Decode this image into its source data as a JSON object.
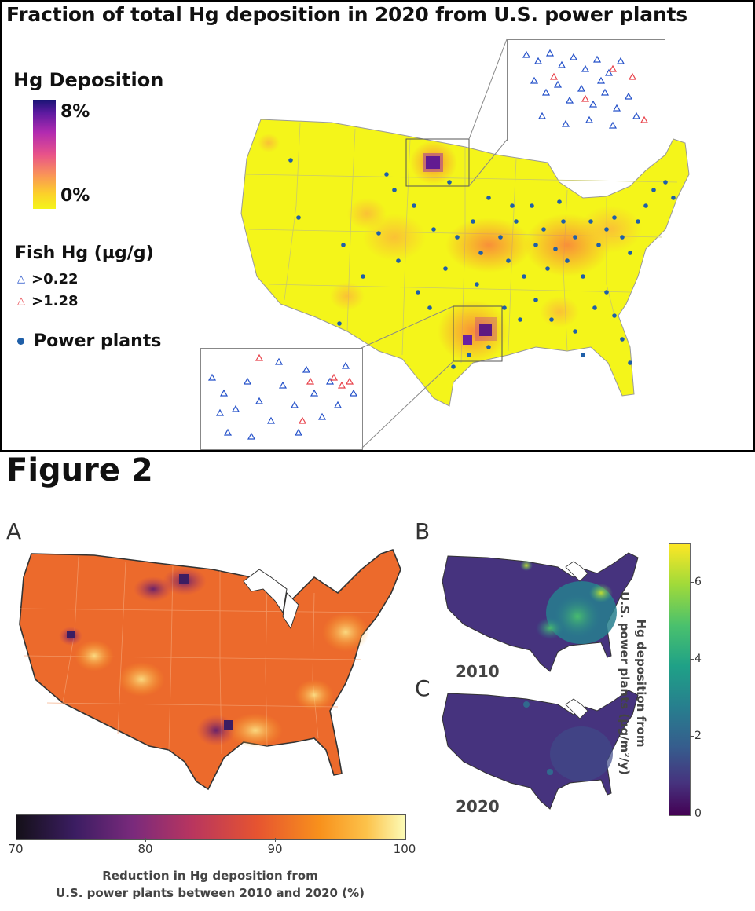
{
  "figure1": {
    "title": "Fraction of total Hg deposition in 2020 from U.S. power plants",
    "legend": {
      "hg_title": "Hg Deposition",
      "hg_max": "8%",
      "hg_min": "0%",
      "fish_title": "Fish Hg (µg/g)",
      "fish_low": ">0.22",
      "fish_high": ">1.28",
      "power_plants": "Power plants"
    },
    "colors": {
      "triangle_low": "#2451c9",
      "triangle_high": "#e8424a",
      "power_plant": "#1f5fa8"
    }
  },
  "figure2": {
    "title": "Figure 2",
    "panel_a": "A",
    "panel_b": "B",
    "panel_c": "C",
    "year_b": "2010",
    "year_c": "2020",
    "colorbar_a": {
      "ticks": [
        "70",
        "80",
        "90",
        "100"
      ],
      "label_line1": "Reduction in Hg deposition from",
      "label_line2": "U.S. power plants between 2010 and 2020 (%)"
    },
    "colorbar_bc": {
      "ticks": [
        "0",
        "2",
        "4",
        "6"
      ],
      "label_line1": "Hg deposition from",
      "label_line2": "U.S. power plants (µg/m²/y)"
    }
  }
}
